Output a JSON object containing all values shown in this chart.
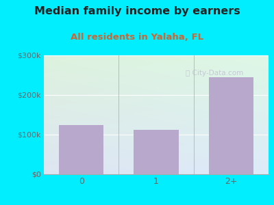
{
  "categories": [
    "0",
    "1",
    "2+"
  ],
  "values": [
    125000,
    112000,
    245000
  ],
  "bar_color": "#b8a8cc",
  "title": "Median family income by earners",
  "subtitle": "All residents in Yalaha, FL",
  "title_fontsize": 11.5,
  "subtitle_fontsize": 9.5,
  "subtitle_color": "#cc6633",
  "title_color": "#222222",
  "background_color": "#00eeff",
  "plot_bg_topleft": "#ddf0dd",
  "plot_bg_bottomright": "#ddeef5",
  "ylim": [
    0,
    300000
  ],
  "yticks": [
    0,
    100000,
    200000,
    300000
  ],
  "ytick_labels": [
    "$0",
    "$100k",
    "$200k",
    "$300k"
  ],
  "tick_color": "#666666",
  "watermark": "ⓘ City-Data.com",
  "gridline_color": "#ccddcc"
}
